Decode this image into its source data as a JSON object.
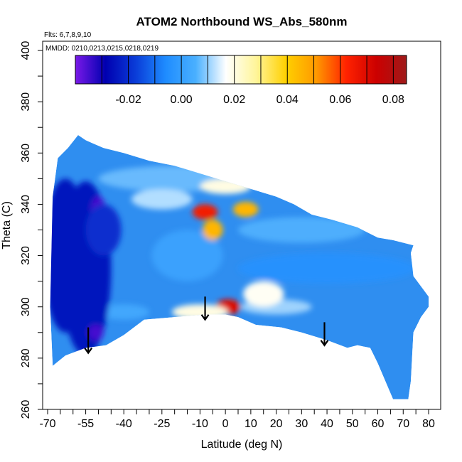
{
  "chart_data": {
    "type": "heatmap",
    "title": "ATOM2 Northbound WS_Abs_580nm",
    "xlabel": "Latitude (deg N)",
    "ylabel": "Theta (C)",
    "xlim": [
      -70,
      82
    ],
    "ylim": [
      260,
      405
    ],
    "x_ticks": [
      -70,
      -55,
      -40,
      -25,
      -10,
      0,
      10,
      20,
      30,
      40,
      50,
      60,
      70,
      80
    ],
    "y_ticks": [
      260,
      280,
      300,
      320,
      340,
      360,
      380,
      400
    ],
    "annotations": {
      "flights": "Flts: 6,7,8,9,10",
      "dates": "MMDD: 0210,0213,0215,0218,0219"
    },
    "colorbar": {
      "range": [
        -0.04,
        0.085
      ],
      "ticks": [
        -0.02,
        0.0,
        0.02,
        0.04,
        0.06,
        0.08
      ],
      "tick_labels": [
        "-0.02",
        "0.00",
        "0.02",
        "0.04",
        "0.06",
        "0.08"
      ],
      "colors": [
        "#7a19e8",
        "#0000b0",
        "#0a3cd8",
        "#1e8cff",
        "#4ab0ff",
        "#ffffff",
        "#fff59a",
        "#ffd000",
        "#ff9900",
        "#ff2200",
        "#cc0000",
        "#9e1a1a"
      ]
    },
    "domain_outline": [
      [
        -68,
        277
      ],
      [
        -63,
        281
      ],
      [
        -55,
        284
      ],
      [
        -47,
        285
      ],
      [
        -40,
        289
      ],
      [
        -32,
        295
      ],
      [
        -20,
        296
      ],
      [
        -8,
        297
      ],
      [
        0,
        297
      ],
      [
        5,
        296
      ],
      [
        12,
        293
      ],
      [
        22,
        292
      ],
      [
        30,
        290
      ],
      [
        40,
        287
      ],
      [
        48,
        284
      ],
      [
        52,
        285
      ],
      [
        57,
        284
      ],
      [
        60,
        278
      ],
      [
        66,
        264
      ],
      [
        72,
        264
      ],
      [
        73,
        271
      ],
      [
        74,
        290
      ],
      [
        77,
        296
      ],
      [
        80,
        300
      ],
      [
        80,
        304
      ],
      [
        74,
        312
      ],
      [
        73,
        321
      ],
      [
        74,
        324
      ],
      [
        66,
        326
      ],
      [
        60,
        327
      ],
      [
        52,
        331
      ],
      [
        42,
        334
      ],
      [
        34,
        336
      ],
      [
        27,
        340
      ],
      [
        20,
        343
      ],
      [
        10,
        346
      ],
      [
        0,
        349
      ],
      [
        -10,
        352
      ],
      [
        -20,
        355
      ],
      [
        -30,
        357
      ],
      [
        -40,
        360
      ],
      [
        -48,
        362
      ],
      [
        -55,
        365
      ],
      [
        -58,
        367
      ],
      [
        -62,
        362
      ],
      [
        -66,
        358
      ],
      [
        -68,
        343
      ],
      [
        -69,
        300
      ]
    ],
    "features": [
      {
        "x": -63,
        "y": 320,
        "rx": 9,
        "ry": 30,
        "value": -0.025
      },
      {
        "x": -55,
        "y": 315,
        "rx": 10,
        "ry": 34,
        "value": -0.025
      },
      {
        "x": -50,
        "y": 337,
        "rx": 3,
        "ry": 6,
        "value": -0.035
      },
      {
        "x": -51,
        "y": 290,
        "rx": 3,
        "ry": 3,
        "value": -0.035
      },
      {
        "x": -48,
        "y": 330,
        "rx": 7,
        "ry": 10,
        "value": -0.02
      },
      {
        "x": -8,
        "y": 337,
        "rx": 5,
        "ry": 3,
        "value": 0.065
      },
      {
        "x": -5,
        "y": 330,
        "rx": 4,
        "ry": 4,
        "value": 0.045
      },
      {
        "x": 8,
        "y": 338,
        "rx": 5,
        "ry": 3,
        "value": 0.045
      },
      {
        "x": 1,
        "y": 300,
        "rx": 5,
        "ry": 3,
        "value": 0.07
      },
      {
        "x": -10,
        "y": 298,
        "rx": 11,
        "ry": 3,
        "value": 0.02
      },
      {
        "x": 15,
        "y": 305,
        "rx": 8,
        "ry": 5,
        "value": 0.018
      },
      {
        "x": -25,
        "y": 342,
        "rx": 12,
        "ry": 4,
        "value": 0.012
      },
      {
        "x": 0,
        "y": 347,
        "rx": 10,
        "ry": 3,
        "value": 0.02
      }
    ],
    "flight_arrows": [
      {
        "x": -54,
        "y_from": 292,
        "y_to": 282
      },
      {
        "x": -8,
        "y_from": 304,
        "y_to": 295
      },
      {
        "x": 39,
        "y_from": 294,
        "y_to": 285
      }
    ]
  }
}
